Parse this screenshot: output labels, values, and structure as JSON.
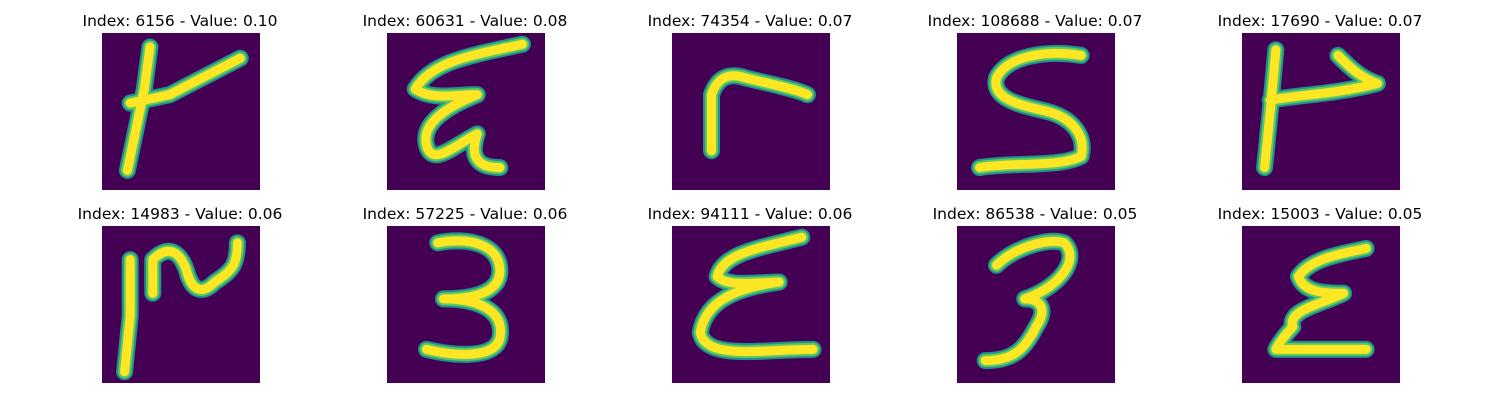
{
  "panels": [
    {
      "title": "Index: 6156 - Value: 0.10",
      "glyph": "glyph-1",
      "index": 6156,
      "value": 0.1
    },
    {
      "title": "Index: 60631 - Value: 0.08",
      "glyph": "glyph-2",
      "index": 60631,
      "value": 0.08
    },
    {
      "title": "Index: 74354 - Value: 0.07",
      "glyph": "glyph-3",
      "index": 74354,
      "value": 0.07
    },
    {
      "title": "Index: 108688 - Value: 0.07",
      "glyph": "glyph-4",
      "index": 108688,
      "value": 0.07
    },
    {
      "title": "Index: 17690 - Value: 0.07",
      "glyph": "glyph-5",
      "index": 17690,
      "value": 0.07
    },
    {
      "title": "Index: 14983 - Value: 0.06",
      "glyph": "glyph-6",
      "index": 14983,
      "value": 0.06
    },
    {
      "title": "Index: 57225 - Value: 0.06",
      "glyph": "glyph-7",
      "index": 57225,
      "value": 0.06
    },
    {
      "title": "Index: 94111 - Value: 0.06",
      "glyph": "glyph-8",
      "index": 94111,
      "value": 0.06
    },
    {
      "title": "Index: 86538 - Value: 0.05",
      "glyph": "glyph-9",
      "index": 86538,
      "value": 0.05
    },
    {
      "title": "Index: 15003 - Value: 0.05",
      "glyph": "glyph-10",
      "index": 15003,
      "value": 0.05
    }
  ],
  "colors": {
    "background": "#440154",
    "stroke_core": "#fde725",
    "stroke_edge": "#21918c"
  }
}
